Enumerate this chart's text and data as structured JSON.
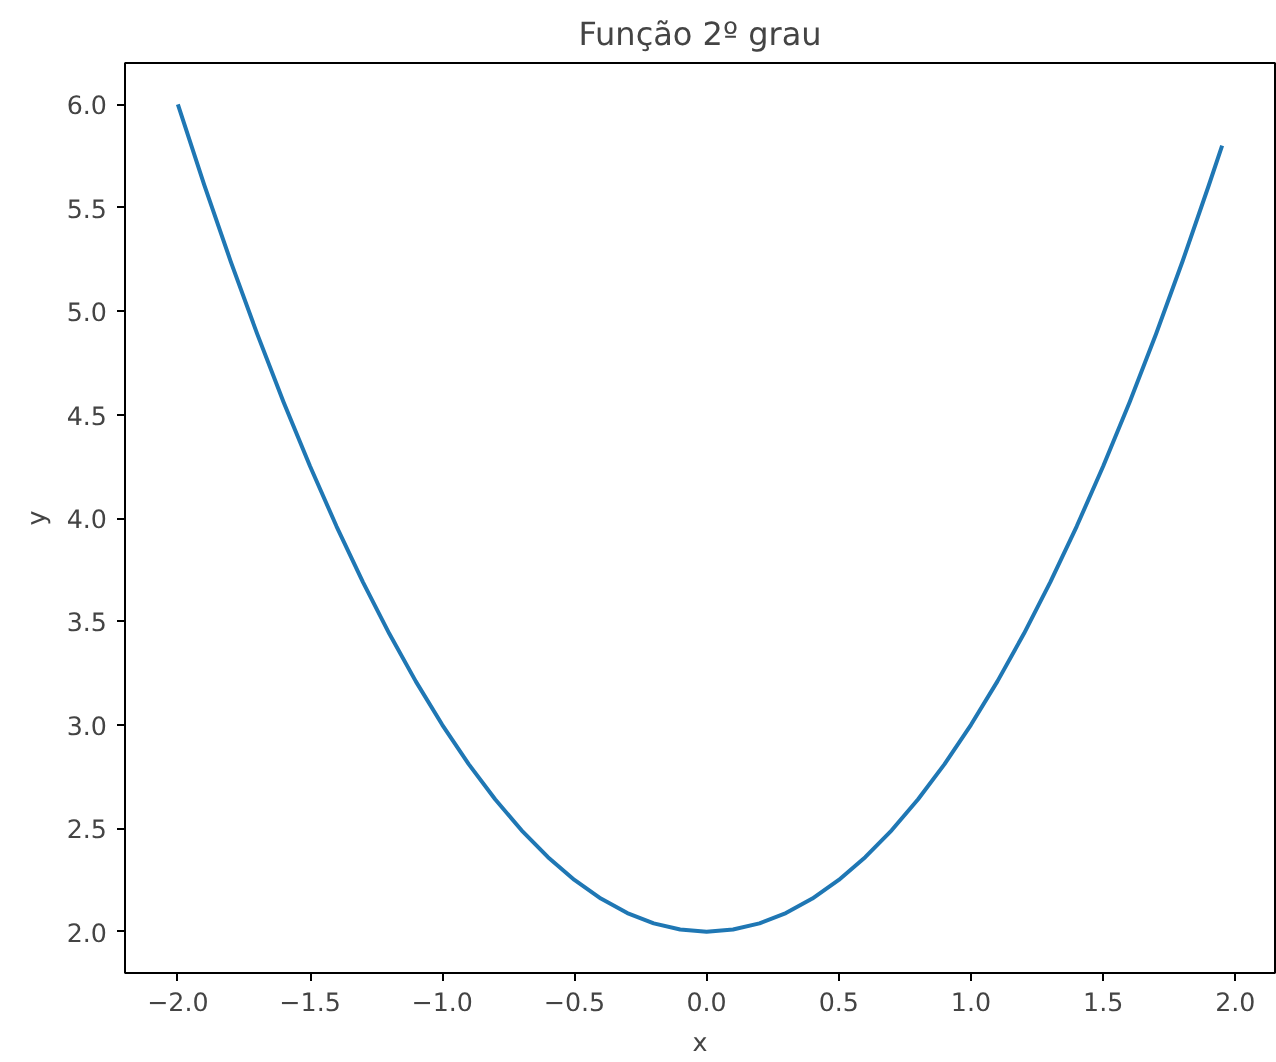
{
  "chart_data": {
    "type": "line",
    "title": "Função 2º grau",
    "xlabel": "x",
    "ylabel": "y",
    "x": [
      -2.0,
      -1.9,
      -1.8,
      -1.7,
      -1.6,
      -1.5,
      -1.4,
      -1.3,
      -1.2,
      -1.1,
      -1.0,
      -0.9,
      -0.8,
      -0.7,
      -0.6,
      -0.5,
      -0.4,
      -0.3,
      -0.2,
      -0.1,
      0.0,
      0.1,
      0.2,
      0.3,
      0.4,
      0.5,
      0.6,
      0.7,
      0.8,
      0.9,
      1.0,
      1.1,
      1.2,
      1.3,
      1.4,
      1.5,
      1.6,
      1.7,
      1.8,
      1.9,
      1.95
    ],
    "series": [
      {
        "color": "#1f77b4",
        "values": [
          6.0,
          5.61,
          5.24,
          4.89,
          4.56,
          4.25,
          3.96,
          3.69,
          3.44,
          3.21,
          3.0,
          2.81,
          2.64,
          2.49,
          2.36,
          2.25,
          2.16,
          2.09,
          2.04,
          2.01,
          2.0,
          2.01,
          2.04,
          2.09,
          2.16,
          2.25,
          2.36,
          2.49,
          2.64,
          2.81,
          3.0,
          3.21,
          3.44,
          3.69,
          3.96,
          4.25,
          4.56,
          4.89,
          5.24,
          5.61,
          5.8
        ]
      }
    ],
    "xlim": [
      -2.2,
      2.15
    ],
    "ylim": [
      1.8,
      6.2
    ],
    "xticks": [
      {
        "value": -2.0,
        "label": "−2.0"
      },
      {
        "value": -1.5,
        "label": "−1.5"
      },
      {
        "value": -1.0,
        "label": "−1.0"
      },
      {
        "value": -0.5,
        "label": "−0.5"
      },
      {
        "value": 0,
        "label": "0.0"
      },
      {
        "value": 0.5,
        "label": "0.5"
      },
      {
        "value": 1.0,
        "label": "1.0"
      },
      {
        "value": 1.5,
        "label": "1.5"
      },
      {
        "value": 2.0,
        "label": "2.0"
      }
    ],
    "yticks": [
      {
        "value": 2,
        "label": "2.0"
      },
      {
        "value": 2.5,
        "label": "2.5"
      },
      {
        "value": 3,
        "label": "3.0"
      },
      {
        "value": 3.5,
        "label": "3.5"
      },
      {
        "value": 4,
        "label": "4.0"
      },
      {
        "value": 4.5,
        "label": "4.5"
      },
      {
        "value": 5,
        "label": "5.0"
      },
      {
        "value": 5.5,
        "label": "5.5"
      },
      {
        "value": 6,
        "label": "6.0"
      }
    ],
    "grid": false
  }
}
